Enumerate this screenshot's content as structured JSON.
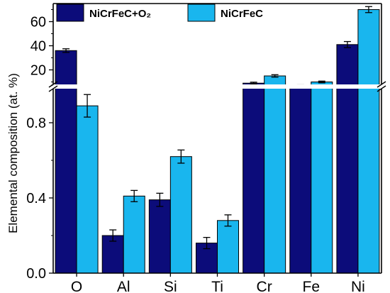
{
  "chart_data": {
    "type": "bar",
    "ylabel": "Elemental composition (at. %)",
    "categories": [
      "O",
      "Al",
      "Si",
      "Ti",
      "Cr",
      "Fe",
      "Ni"
    ],
    "axis_break": {
      "lower_range": [
        0,
        1.0
      ],
      "upper_range": [
        5,
        75
      ]
    },
    "lower_ticks": [
      0.0,
      0.4,
      0.8
    ],
    "lower_tick_labels": [
      "0.0",
      "0.4",
      "0.8"
    ],
    "upper_ticks": [
      20,
      40,
      60
    ],
    "upper_tick_labels": [
      "20",
      "40",
      "60"
    ],
    "series": [
      {
        "name": "NiCrFeC+O2",
        "color": "#0c0c7a",
        "values": [
          36,
          0.2,
          0.39,
          0.16,
          9,
          7,
          41
        ],
        "errors": [
          1.5,
          0.03,
          0.035,
          0.03,
          0.8,
          0.6,
          2.5
        ]
      },
      {
        "name": "NiCrFeC",
        "color": "#19b6ee",
        "values": [
          0.89,
          0.41,
          0.62,
          0.28,
          15,
          10,
          70
        ],
        "errors": [
          0.06,
          0.03,
          0.035,
          0.03,
          1.0,
          0.7,
          2.5
        ]
      }
    ],
    "legend_position": "top-left",
    "grid": false
  },
  "legend": {
    "series_1": "NiCrFeC+O₂",
    "series_2": "NiCrFeC"
  }
}
